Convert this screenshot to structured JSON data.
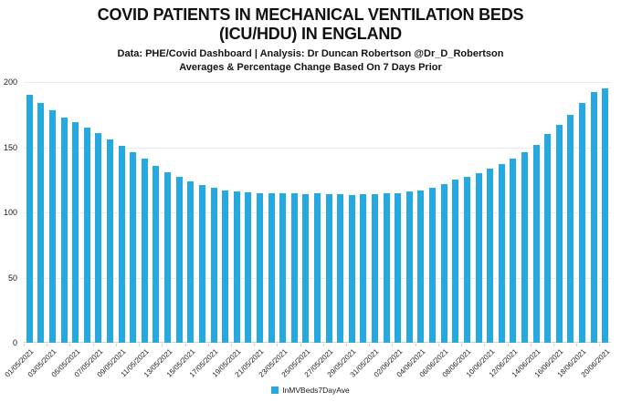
{
  "header": {
    "title_line1": "COVID PATIENTS IN MECHANICAL VENTILATION BEDS",
    "title_line2": "(ICU/HDU) IN ENGLAND",
    "subtitle1": "Data: PHE/Covid Dashboard | Analysis: Dr Duncan Robertson @Dr_D_Robertson",
    "subtitle2": "Averages & Percentage Change Based On 7 Days Prior"
  },
  "legend": {
    "label": "InMVBeds7DayAve"
  },
  "colors": {
    "bar": "#26A9E0",
    "gridline": "#EAEAEA",
    "axis_line": "#D2D2D2",
    "text": "#1A1A1A"
  },
  "chart_data": {
    "type": "bar",
    "title": "COVID PATIENTS IN MECHANICAL VENTILATION BEDS (ICU/HDU) IN ENGLAND",
    "subtitle": "Data: PHE/Covid Dashboard | Analysis: Dr Duncan Robertson @Dr_D_Robertson — Averages & Percentage Change Based On 7 Days Prior",
    "xlabel": "",
    "ylabel": "",
    "ylim": [
      0,
      200
    ],
    "yticks": [
      0,
      50,
      100,
      150,
      200
    ],
    "grid": "horizontal",
    "legend_position": "bottom-center",
    "x_label_every": 2,
    "x": [
      "01/05/2021",
      "02/05/2021",
      "03/05/2021",
      "04/05/2021",
      "05/05/2021",
      "06/05/2021",
      "07/05/2021",
      "08/05/2021",
      "09/05/2021",
      "10/05/2021",
      "11/05/2021",
      "12/05/2021",
      "13/05/2021",
      "14/05/2021",
      "15/05/2021",
      "16/05/2021",
      "17/05/2021",
      "18/05/2021",
      "19/05/2021",
      "20/05/2021",
      "21/05/2021",
      "22/05/2021",
      "23/05/2021",
      "24/05/2021",
      "25/05/2021",
      "26/05/2021",
      "27/05/2021",
      "28/05/2021",
      "29/05/2021",
      "30/05/2021",
      "31/05/2021",
      "01/06/2021",
      "02/06/2021",
      "03/06/2021",
      "04/06/2021",
      "05/06/2021",
      "06/06/2021",
      "07/06/2021",
      "08/06/2021",
      "09/06/2021",
      "10/06/2021",
      "11/06/2021",
      "12/06/2021",
      "13/06/2021",
      "14/06/2021",
      "15/06/2021",
      "16/06/2021",
      "17/06/2021",
      "18/06/2021",
      "19/06/2021",
      "20/06/2021"
    ],
    "series": [
      {
        "name": "InMVBeds7DayAve",
        "values": [
          190,
          184,
          178,
          173,
          169,
          165,
          161,
          156,
          151,
          146,
          141,
          136,
          131,
          127,
          124,
          121,
          119,
          117,
          116,
          115.5,
          115,
          115,
          114.5,
          114.5,
          114,
          114.5,
          114,
          114,
          113.5,
          114,
          114,
          114.5,
          115,
          116,
          117,
          119,
          122,
          125,
          127.5,
          130,
          133.5,
          137,
          141.5,
          146,
          152,
          160,
          167,
          175,
          184,
          192,
          195
        ]
      }
    ]
  }
}
